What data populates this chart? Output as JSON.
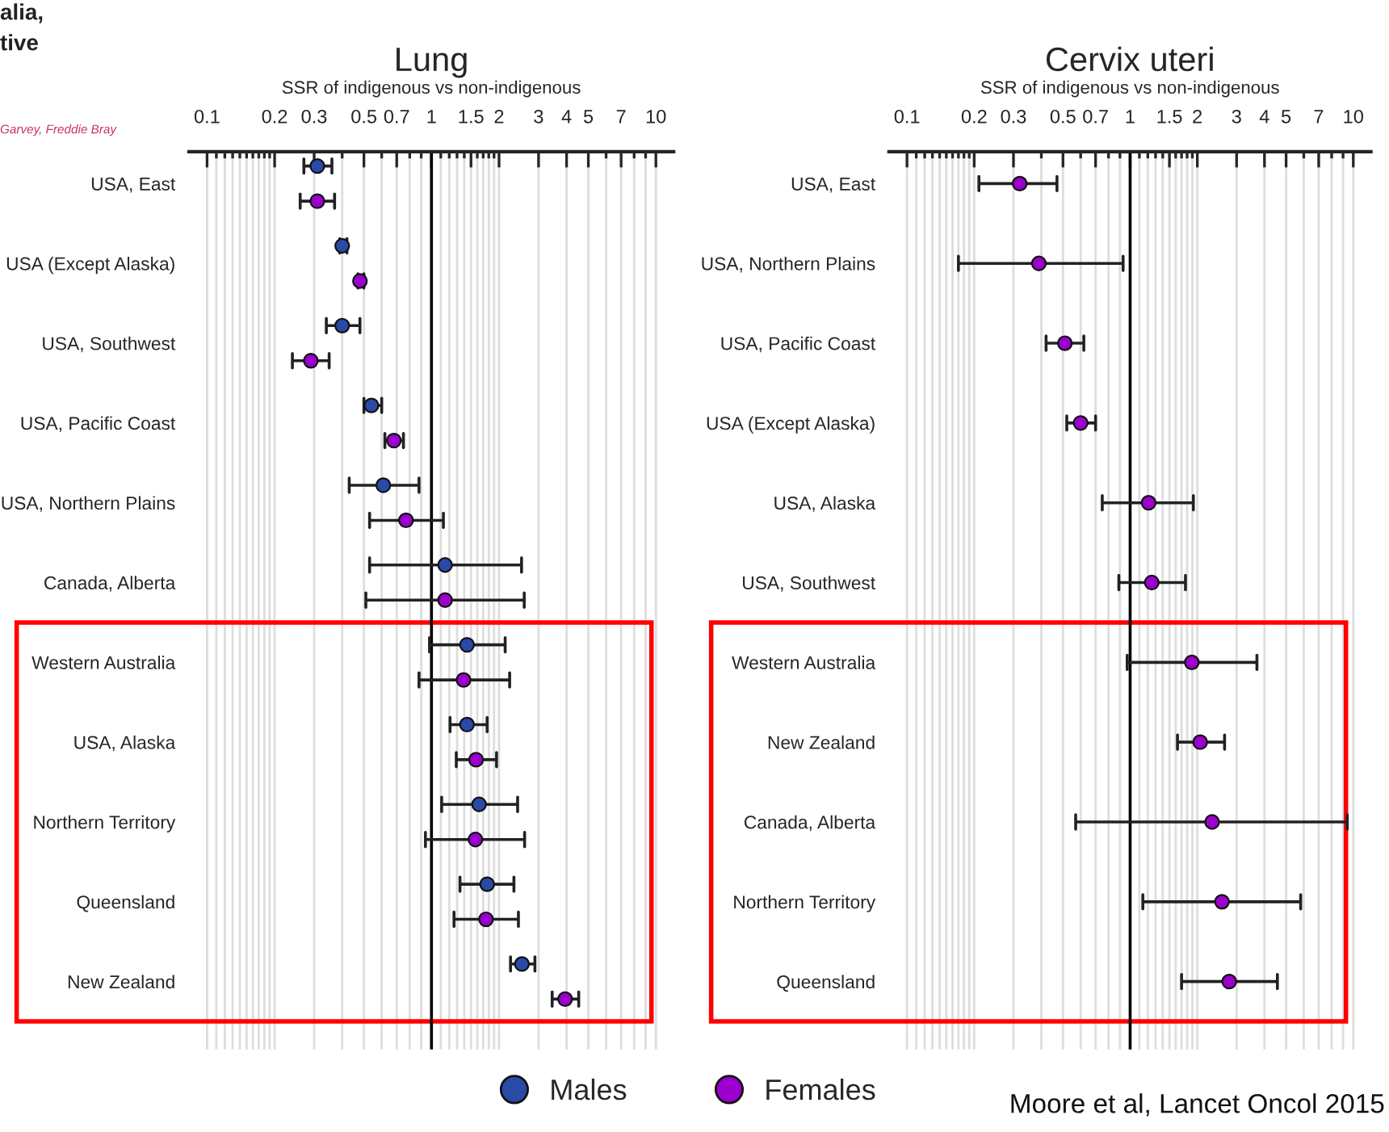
{
  "chart_data": [
    {
      "type": "scatter",
      "orientation": "horizontal",
      "title": "Lung",
      "xlabel": "SSR of indigenous vs non-indigenous",
      "categories": [
        "USA, East",
        "USA (Except Alaska)",
        "USA, Southwest",
        "USA, Pacific Coast",
        "USA, Northern Plains",
        "Canada, Alberta",
        "Western Australia",
        "USA, Alaska",
        "Northern Territory",
        "Queensland",
        "New Zealand"
      ],
      "series": [
        {
          "name": "Males",
          "color": "#2a4aa8",
          "values": [
            0.31,
            0.4,
            0.4,
            0.54,
            0.61,
            1.15,
            1.44,
            1.44,
            1.63,
            1.77,
            2.53
          ],
          "errors": [
            [
              0.27,
              0.36
            ],
            [
              0.39,
              0.42
            ],
            [
              0.34,
              0.48
            ],
            [
              0.5,
              0.6
            ],
            [
              0.43,
              0.88
            ],
            [
              0.53,
              2.52
            ],
            [
              0.98,
              2.13
            ],
            [
              1.21,
              1.77
            ],
            [
              1.11,
              2.42
            ],
            [
              1.34,
              2.33
            ],
            [
              2.25,
              2.89
            ]
          ]
        },
        {
          "name": "Females",
          "color": "#9b00cc",
          "values": [
            0.31,
            0.48,
            0.29,
            0.68,
            0.77,
            1.15,
            1.39,
            1.58,
            1.57,
            1.75,
            3.94
          ],
          "errors": [
            [
              0.26,
              0.37
            ],
            [
              0.47,
              0.5
            ],
            [
              0.24,
              0.35
            ],
            [
              0.62,
              0.75
            ],
            [
              0.53,
              1.13
            ],
            [
              0.51,
              2.59
            ],
            [
              0.88,
              2.23
            ],
            [
              1.29,
              1.95
            ],
            [
              0.94,
              2.6
            ],
            [
              1.26,
              2.44
            ],
            [
              3.45,
              4.53
            ]
          ]
        }
      ],
      "log": "x",
      "xlim": [
        0.083,
        12
      ],
      "xticks": [
        0.1,
        {
          "value": 0.11,
          "label": null
        },
        {
          "value": 0.12,
          "label": null
        },
        {
          "value": 0.13,
          "label": null
        },
        {
          "value": 0.14,
          "label": null
        },
        {
          "value": 0.15,
          "label": null
        },
        {
          "value": 0.16,
          "label": null
        },
        {
          "value": 0.17,
          "label": null
        },
        {
          "value": 0.18,
          "label": null
        },
        {
          "value": 0.19,
          "label": null
        },
        0.2,
        0.3,
        {
          "value": 0.4,
          "label": null
        },
        0.5,
        {
          "value": 0.6,
          "label": null
        },
        0.7,
        {
          "value": 0.8,
          "label": null
        },
        {
          "value": 0.9,
          "label": null
        },
        1,
        {
          "value": 1.1,
          "label": null
        },
        {
          "value": 1.2,
          "label": null
        },
        {
          "value": 1.3,
          "label": null
        },
        {
          "value": 1.4,
          "label": null
        },
        1.5,
        {
          "value": 1.6,
          "label": null
        },
        {
          "value": 1.7,
          "label": null
        },
        {
          "value": 1.8,
          "label": null
        },
        {
          "value": 1.9,
          "label": null
        },
        2,
        3,
        4,
        5,
        {
          "value": 6,
          "label": null
        },
        7,
        {
          "value": 8,
          "label": null
        },
        {
          "value": 9,
          "label": null
        },
        10
      ],
      "grid": "x",
      "legend": "bottom",
      "marker": "circle",
      "ref_lines": [
        {
          "axis": "x",
          "value": 1,
          "color": "#000000"
        }
      ],
      "annotations": [
        "alia,\ntive",
        "Garvey, Freddie Bray"
      ]
    },
    {
      "type": "scatter",
      "orientation": "horizontal",
      "title": "Cervix uteri",
      "xlabel": "SSR of indigenous vs non-indigenous",
      "categories": [
        "USA, East",
        "USA, Northern Plains",
        "USA, Pacific Coast",
        "USA (Except Alaska)",
        "USA, Alaska",
        "USA, Southwest",
        "Western Australia",
        "New Zealand",
        "Canada, Alberta",
        "Northern Territory",
        "Queensland"
      ],
      "series": [
        {
          "color": "#9b00cc",
          "values": [
            0.32,
            0.39,
            0.51,
            0.6,
            1.21,
            1.25,
            1.89,
            2.06,
            2.33,
            2.58,
            2.78
          ],
          "errors": [
            [
              0.21,
              0.47
            ],
            [
              0.17,
              0.93
            ],
            [
              0.42,
              0.62
            ],
            [
              0.52,
              0.7
            ],
            [
              0.75,
              1.92
            ],
            [
              0.89,
              1.77
            ],
            [
              0.97,
              3.7
            ],
            [
              1.63,
              2.65
            ],
            [
              0.57,
              9.4
            ],
            [
              1.14,
              5.81
            ],
            [
              1.7,
              4.57
            ]
          ]
        }
      ],
      "log": "x",
      "xlim": [
        0.083,
        12
      ],
      "xticks": [
        0.1,
        {
          "value": 0.11,
          "label": null
        },
        {
          "value": 0.12,
          "label": null
        },
        {
          "value": 0.13,
          "label": null
        },
        {
          "value": 0.14,
          "label": null
        },
        {
          "value": 0.15,
          "label": null
        },
        {
          "value": 0.16,
          "label": null
        },
        {
          "value": 0.17,
          "label": null
        },
        {
          "value": 0.18,
          "label": null
        },
        {
          "value": 0.19,
          "label": null
        },
        0.2,
        0.3,
        {
          "value": 0.4,
          "label": null
        },
        0.5,
        {
          "value": 0.6,
          "label": null
        },
        0.7,
        {
          "value": 0.8,
          "label": null
        },
        {
          "value": 0.9,
          "label": null
        },
        1,
        {
          "value": 1.1,
          "label": null
        },
        {
          "value": 1.2,
          "label": null
        },
        {
          "value": 1.3,
          "label": null
        },
        {
          "value": 1.4,
          "label": null
        },
        1.5,
        {
          "value": 1.6,
          "label": null
        },
        {
          "value": 1.7,
          "label": null
        },
        {
          "value": 1.8,
          "label": null
        },
        {
          "value": 1.9,
          "label": null
        },
        2,
        3,
        4,
        5,
        {
          "value": 6,
          "label": null
        },
        7,
        {
          "value": 8,
          "label": null
        },
        {
          "value": 9,
          "label": null
        },
        10
      ],
      "grid": "x",
      "marker": "circle",
      "ref_lines": [
        {
          "axis": "x",
          "value": 1,
          "color": "#000000"
        }
      ],
      "annotations": [
        "Moore et al, Lancet Oncol 2015"
      ]
    }
  ]
}
